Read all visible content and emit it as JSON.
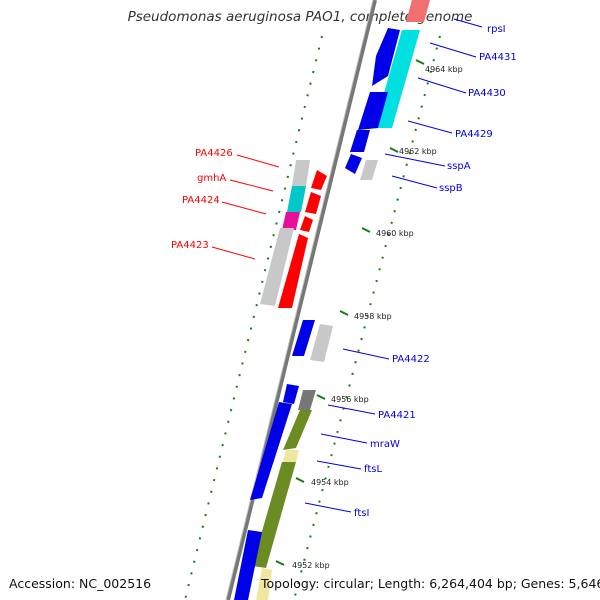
{
  "title": "Pseudomonas aeruginosa PAO1, complete genome",
  "accession": "Accession: NC_002516",
  "topology": "Topology: circular; Length: 6,264,404 bp; Genes: 5,646",
  "colors": {
    "forward": "#0000e8",
    "reverse": "#ff0000",
    "cyan": "#00e0e0",
    "pink": "#f07070",
    "magenta": "#e8109a",
    "grey": "#c8c8c8",
    "darkgrey": "#777777",
    "olive": "#6b8c23",
    "khaki": "#f0e6a0",
    "green": "#1a7a1a",
    "backbone": "#777777"
  },
  "ticks": [
    "4964 kbp",
    "4962 kbp",
    "4960 kbp",
    "4958 kbp",
    "4956 kbp",
    "4954 kbp",
    "4952 kbp"
  ],
  "right_labels": [
    "rpsI",
    "PA4431",
    "PA4430",
    "PA4429",
    "sspA",
    "sspB",
    "PA4422",
    "PA4421",
    "mraW",
    "ftsL",
    "ftsI"
  ],
  "left_labels": [
    "PA4426",
    "gmhA",
    "PA4424",
    "PA4423"
  ]
}
